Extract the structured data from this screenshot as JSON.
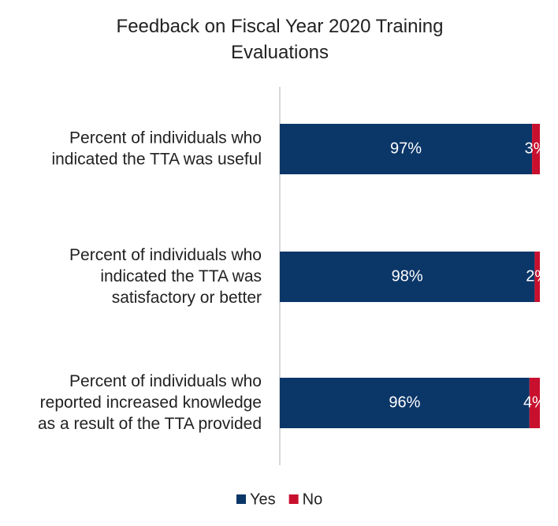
{
  "chart_data": {
    "type": "stacked-bar-horizontal",
    "title": "Feedback on Fiscal Year 2020 Training\nEvaluations",
    "categories": [
      "Percent of individuals who\nindicated the TTA was useful",
      "Percent of individuals who\nindicated the TTA was\nsatisfactory or better",
      "Percent of individuals who\nreported increased knowledge\nas a result of the TTA provided"
    ],
    "series": [
      {
        "name": "Yes",
        "color": "#0b3668",
        "values": [
          97,
          98,
          96
        ],
        "value_labels": [
          "97%",
          "98%",
          "96%"
        ]
      },
      {
        "name": "No",
        "color": "#c8102e",
        "values": [
          3,
          2,
          4
        ],
        "value_labels": [
          "3%",
          "2%",
          "4%"
        ]
      }
    ],
    "legend": "bottom"
  }
}
